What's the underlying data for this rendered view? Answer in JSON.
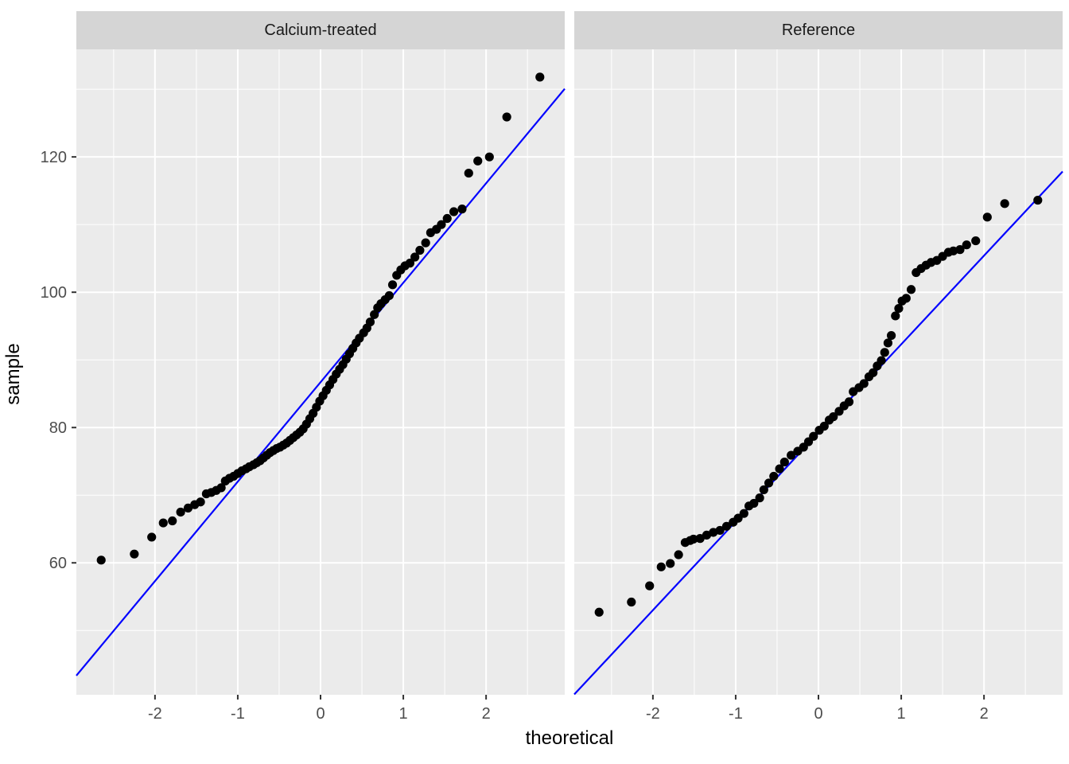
{
  "figure": {
    "x_axis_title": "theoretical",
    "y_axis_title": "sample"
  },
  "chart_data": {
    "type": "scatter",
    "subtype": "qq-plot-faceted",
    "title": "",
    "xlabel": "theoretical",
    "ylabel": "sample",
    "legend": "none",
    "grid": "major-and-minor-white-on-grey",
    "x_domain": [
      -2.95,
      2.95
    ],
    "y_domain": [
      40.5,
      135.9
    ],
    "x_ticks": [
      -2,
      -1,
      0,
      1,
      2
    ],
    "x_minor_ticks": [
      -2.5,
      -1.5,
      -0.5,
      0.5,
      1.5,
      2.5
    ],
    "y_ticks": [
      60,
      80,
      100,
      120
    ],
    "y_minor_ticks": [
      50,
      70,
      90,
      110,
      130
    ],
    "colors": {
      "panel_bg": "#EBEBEB",
      "strip_bg": "#D5D5D5",
      "grid": "#FFFFFF",
      "point": "#000000",
      "line": "#0000FF",
      "axis_text": "#4D4D4D",
      "tick_mark": "#333333",
      "strip_text": "#1A1A1A",
      "title_text": "#000000"
    },
    "panels": [
      {
        "label": "Calcium-treated",
        "line": {
          "intercept": 86.7,
          "slope": 14.7
        },
        "points": [
          [
            -2.65,
            60.4
          ],
          [
            -2.25,
            61.3
          ],
          [
            -2.04,
            63.8
          ],
          [
            -1.9,
            65.9
          ],
          [
            -1.79,
            66.2
          ],
          [
            -1.69,
            67.5
          ],
          [
            -1.6,
            68.1
          ],
          [
            -1.52,
            68.6
          ],
          [
            -1.45,
            69.0
          ],
          [
            -1.38,
            70.2
          ],
          [
            -1.32,
            70.4
          ],
          [
            -1.26,
            70.7
          ],
          [
            -1.2,
            71.1
          ],
          [
            -1.15,
            72.1
          ],
          [
            -1.1,
            72.5
          ],
          [
            -1.05,
            72.8
          ],
          [
            -1.0,
            73.2
          ],
          [
            -0.95,
            73.6
          ],
          [
            -0.9,
            73.9
          ],
          [
            -0.86,
            74.2
          ],
          [
            -0.81,
            74.5
          ],
          [
            -0.77,
            74.8
          ],
          [
            -0.73,
            75.1
          ],
          [
            -0.69,
            75.5
          ],
          [
            -0.65,
            75.9
          ],
          [
            -0.61,
            76.3
          ],
          [
            -0.57,
            76.6
          ],
          [
            -0.53,
            76.9
          ],
          [
            -0.49,
            77.1
          ],
          [
            -0.45,
            77.4
          ],
          [
            -0.41,
            77.7
          ],
          [
            -0.37,
            78.1
          ],
          [
            -0.33,
            78.5
          ],
          [
            -0.29,
            78.9
          ],
          [
            -0.25,
            79.3
          ],
          [
            -0.21,
            79.8
          ],
          [
            -0.17,
            80.5
          ],
          [
            -0.13,
            81.3
          ],
          [
            -0.09,
            82.1
          ],
          [
            -0.05,
            83.0
          ],
          [
            -0.01,
            83.9
          ],
          [
            0.03,
            84.7
          ],
          [
            0.07,
            85.5
          ],
          [
            0.11,
            86.3
          ],
          [
            0.15,
            87.1
          ],
          [
            0.19,
            87.9
          ],
          [
            0.23,
            88.6
          ],
          [
            0.27,
            89.3
          ],
          [
            0.31,
            90.1
          ],
          [
            0.35,
            90.9
          ],
          [
            0.39,
            91.7
          ],
          [
            0.43,
            92.5
          ],
          [
            0.47,
            93.2
          ],
          [
            0.52,
            94.0
          ],
          [
            0.56,
            94.7
          ],
          [
            0.6,
            95.6
          ],
          [
            0.65,
            96.7
          ],
          [
            0.69,
            97.7
          ],
          [
            0.73,
            98.3
          ],
          [
            0.78,
            98.9
          ],
          [
            0.83,
            99.5
          ],
          [
            0.87,
            101.1
          ],
          [
            0.92,
            102.5
          ],
          [
            0.97,
            103.3
          ],
          [
            1.02,
            103.9
          ],
          [
            1.08,
            104.3
          ],
          [
            1.14,
            105.2
          ],
          [
            1.2,
            106.2
          ],
          [
            1.27,
            107.3
          ],
          [
            1.33,
            108.8
          ],
          [
            1.4,
            109.3
          ],
          [
            1.46,
            110.0
          ],
          [
            1.53,
            110.9
          ],
          [
            1.61,
            111.9
          ],
          [
            1.71,
            112.3
          ],
          [
            1.79,
            117.6
          ],
          [
            1.9,
            119.4
          ],
          [
            2.04,
            120.0
          ],
          [
            2.25,
            125.9
          ],
          [
            2.65,
            131.8
          ]
        ]
      },
      {
        "label": "Reference",
        "line": {
          "intercept": 79.2,
          "slope": 13.1
        },
        "points": [
          [
            -2.65,
            52.7
          ],
          [
            -2.26,
            54.2
          ],
          [
            -2.04,
            56.6
          ],
          [
            -1.9,
            59.4
          ],
          [
            -1.79,
            59.9
          ],
          [
            -1.69,
            61.2
          ],
          [
            -1.61,
            63.0
          ],
          [
            -1.55,
            63.3
          ],
          [
            -1.51,
            63.5
          ],
          [
            -1.43,
            63.6
          ],
          [
            -1.35,
            64.1
          ],
          [
            -1.27,
            64.5
          ],
          [
            -1.19,
            64.8
          ],
          [
            -1.11,
            65.4
          ],
          [
            -1.03,
            66.0
          ],
          [
            -0.97,
            66.6
          ],
          [
            -0.9,
            67.3
          ],
          [
            -0.84,
            68.4
          ],
          [
            -0.78,
            68.8
          ],
          [
            -0.71,
            69.6
          ],
          [
            -0.66,
            70.8
          ],
          [
            -0.6,
            71.8
          ],
          [
            -0.54,
            72.8
          ],
          [
            -0.47,
            73.9
          ],
          [
            -0.41,
            74.9
          ],
          [
            -0.33,
            75.9
          ],
          [
            -0.25,
            76.5
          ],
          [
            -0.18,
            77.1
          ],
          [
            -0.12,
            77.9
          ],
          [
            -0.06,
            78.7
          ],
          [
            0.01,
            79.6
          ],
          [
            0.07,
            80.2
          ],
          [
            0.13,
            81.1
          ],
          [
            0.18,
            81.6
          ],
          [
            0.25,
            82.4
          ],
          [
            0.31,
            83.2
          ],
          [
            0.37,
            83.8
          ],
          [
            0.42,
            85.3
          ],
          [
            0.49,
            85.9
          ],
          [
            0.55,
            86.5
          ],
          [
            0.61,
            87.5
          ],
          [
            0.66,
            88.1
          ],
          [
            0.71,
            89.1
          ],
          [
            0.76,
            89.9
          ],
          [
            0.8,
            91.1
          ],
          [
            0.84,
            92.5
          ],
          [
            0.88,
            93.6
          ],
          [
            0.93,
            96.5
          ],
          [
            0.97,
            97.6
          ],
          [
            1.01,
            98.7
          ],
          [
            1.06,
            99.1
          ],
          [
            1.12,
            100.4
          ],
          [
            1.18,
            102.9
          ],
          [
            1.24,
            103.5
          ],
          [
            1.3,
            104.0
          ],
          [
            1.36,
            104.4
          ],
          [
            1.43,
            104.7
          ],
          [
            1.5,
            105.3
          ],
          [
            1.57,
            105.9
          ],
          [
            1.63,
            106.1
          ],
          [
            1.71,
            106.3
          ],
          [
            1.79,
            107.0
          ],
          [
            1.9,
            107.6
          ],
          [
            2.04,
            111.1
          ],
          [
            2.25,
            113.1
          ],
          [
            2.65,
            113.6
          ]
        ]
      }
    ]
  }
}
